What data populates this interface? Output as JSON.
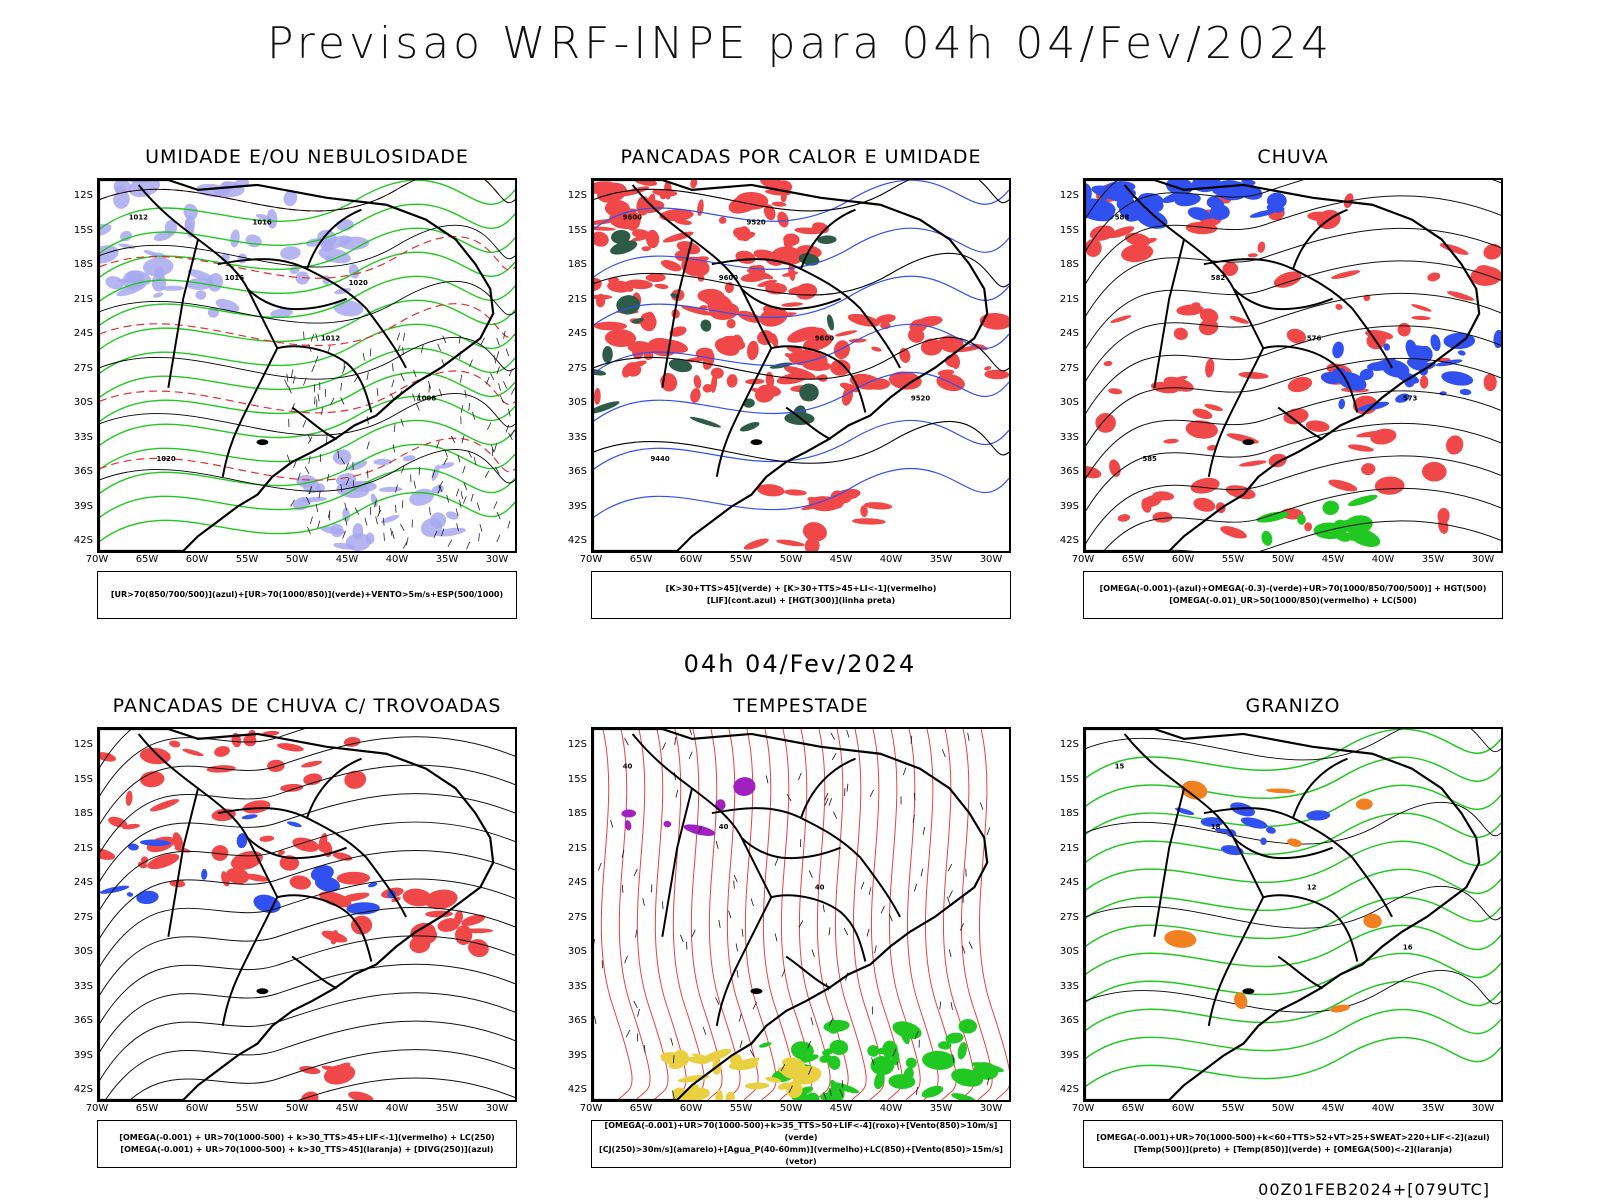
{
  "title": "Previsao WRF-INPE  para 04h 04/Fev/2024",
  "subtitle": "04h 04/Fev/2024",
  "footer": "00Z01FEB2024+[079UTC]",
  "axes": {
    "lat_labels": [
      "12S",
      "15S",
      "18S",
      "21S",
      "24S",
      "27S",
      "30S",
      "33S",
      "36S",
      "39S",
      "42S"
    ],
    "lon_labels": [
      "70W",
      "65W",
      "60W",
      "55W",
      "50W",
      "45W",
      "40W",
      "35W",
      "30W"
    ]
  },
  "colors": {
    "red": "#f04848",
    "green": "#22c822",
    "blue": "#3050f0",
    "lavender": "#a8a8f0",
    "darkgreen": "#2e5a48",
    "yellow": "#e8d040",
    "orange": "#f08020",
    "purple": "#a020c0"
  },
  "panels": [
    {
      "title": "UMIDADE E/OU NEBULOSIDADE",
      "legend": [
        "[UR>70(850/700/500)](azul)+[UR>70(1000/850)](verde)+VENTO>5m/s+ESP(500/1000)"
      ],
      "labels": [
        "1012",
        "1016",
        "1012",
        "1008",
        "1020",
        "1016",
        "1020"
      ]
    },
    {
      "title": "PANCADAS POR CALOR E UMIDADE",
      "legend": [
        "[K>30+TTS>45](verde) + [K>30+TTS>45+LI<-1](vermelho)",
        "[LIF](cont.azul) + [HGT(300)](linha preta)"
      ],
      "labels": [
        "9600",
        "9600",
        "9600",
        "9520",
        "9440",
        "9520"
      ]
    },
    {
      "title": "CHUVA",
      "legend": [
        "[OMEGA(-0.001)-(azul)+OMEGA(-0.3)-(verde)+UR>70(1000/850/700/500)] + HGT(500)",
        "[OMEGA(-0.01)_UR>50(1000/850)(vermelho) + LC(500)"
      ],
      "labels": [
        "588",
        "582",
        "576",
        "573",
        "585"
      ]
    },
    {
      "title": "PANCADAS DE CHUVA C/ TROVOADAS",
      "legend": [
        "[OMEGA(-0.001) + UR>70(1000-500) + k>30_TTS>45+LIF<-1](vermelho) + LC(250)",
        "[OMEGA(-0.001) + UR>70(1000-500) + k>30_TTS>45](laranja) + [DIVG(250)](azul)"
      ],
      "labels": []
    },
    {
      "title": "TEMPESTADE",
      "legend": [
        "[OMEGA(-0.001)+UR>70(1000-500)+k>35_TTS>50+LIF<-4](roxo)+[Vento(850)>10m/s](verde)",
        "[CJ(250)>30m/s](amarelo)+[Agua_P(40-60mm)](vermelho)+LC(850)+[Vento(850)>15m/s](vetor)"
      ],
      "labels": [
        "40",
        "40",
        "40"
      ]
    },
    {
      "title": "GRANIZO",
      "legend": [
        "[OMEGA(-0.001)+UR>70(1000-500)+k<60+TTS>52+VT>25+SWEAT>220+LIF<-2](azul)",
        "[Temp(500)](preto) + [Temp(850)](verde) + [OMEGA(500)<-2](laranja)"
      ],
      "labels": [
        "15",
        "18",
        "12",
        "16"
      ]
    }
  ]
}
